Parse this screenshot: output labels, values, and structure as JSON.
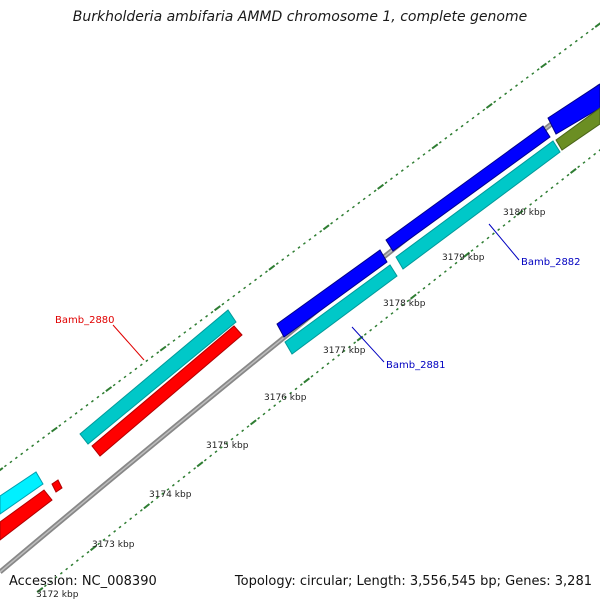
{
  "title": "Burkholderia ambifaria AMMD chromosome 1, complete genome",
  "footer": {
    "accession": "Accession: NC_008390",
    "summary": "Topology: circular; Length: 3,556,545 bp; Genes: 3,281"
  },
  "kbp_labels": [
    "3172 kbp",
    "3173 kbp",
    "3174 kbp",
    "3175 kbp",
    "3176 kbp",
    "3177 kbp",
    "3178 kbp",
    "3179 kbp",
    "3180 kbp"
  ],
  "gene_labels": [
    {
      "name": "Bamb_2880",
      "color": "#e00000"
    },
    {
      "name": "Bamb_2881",
      "color": "#0000c0"
    },
    {
      "name": "Bamb_2882",
      "color": "#0000c0"
    }
  ],
  "colors": {
    "backbone": "#7f7f7f",
    "cds_forward": "#0000ff",
    "cds_reverse": "#ff0000",
    "gene_forward": "#00c8c8",
    "gene_reverse_light": "#00e5ff",
    "other_feature": "#6b8e23",
    "tick": "#2e7d32"
  }
}
